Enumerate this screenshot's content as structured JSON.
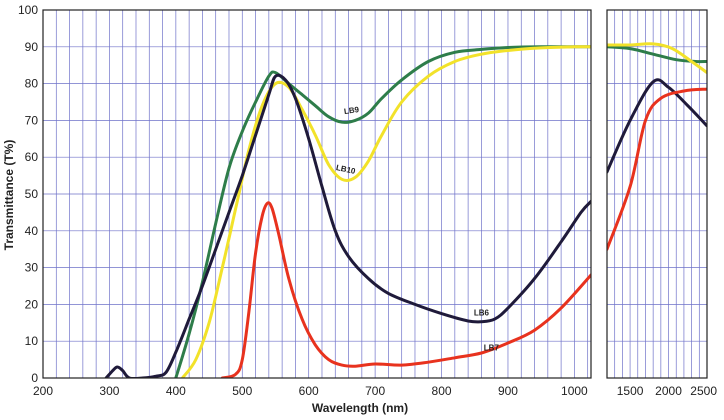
{
  "chart_data": {
    "type": "line",
    "xlabel": "Wavelength (nm)",
    "ylabel": "Transmittance (T%)",
    "ylim": [
      0,
      100
    ],
    "yticks": [
      0,
      10,
      20,
      30,
      40,
      50,
      60,
      70,
      80,
      90,
      100
    ],
    "grid": true,
    "panels": [
      {
        "xlim": [
          200,
          1025
        ],
        "xticks": [
          200,
          300,
          400,
          500,
          600,
          700,
          800,
          900,
          1000
        ]
      },
      {
        "xlim": [
          1200,
          2500
        ],
        "xticks": [
          1500,
          2000,
          2500
        ],
        "tick_labels": [
          "1500",
          "2000",
          "2500"
        ]
      }
    ],
    "series": [
      {
        "name": "LB9",
        "color": "#2e7d4a",
        "points": [
          [
            400,
            0
          ],
          [
            420,
            12
          ],
          [
            440,
            26
          ],
          [
            460,
            42
          ],
          [
            480,
            57
          ],
          [
            500,
            67
          ],
          [
            520,
            75
          ],
          [
            540,
            82
          ],
          [
            550,
            83
          ],
          [
            570,
            80
          ],
          [
            590,
            77
          ],
          [
            610,
            74
          ],
          [
            630,
            71
          ],
          [
            650,
            69.5
          ],
          [
            670,
            70
          ],
          [
            690,
            72
          ],
          [
            710,
            76
          ],
          [
            740,
            81
          ],
          [
            780,
            86
          ],
          [
            820,
            88.5
          ],
          [
            860,
            89.3
          ],
          [
            900,
            89.8
          ],
          [
            950,
            90
          ],
          [
            1000,
            90
          ],
          [
            1025,
            90
          ]
        ],
        "points_nir": [
          [
            1200,
            90
          ],
          [
            1500,
            89.5
          ],
          [
            1800,
            88
          ],
          [
            2100,
            86.5
          ],
          [
            2350,
            86
          ],
          [
            2500,
            86
          ]
        ]
      },
      {
        "name": "LB10",
        "color": "#f2e22a",
        "points": [
          [
            410,
            0
          ],
          [
            430,
            5
          ],
          [
            450,
            15
          ],
          [
            470,
            30
          ],
          [
            490,
            46
          ],
          [
            510,
            62
          ],
          [
            530,
            74
          ],
          [
            550,
            80
          ],
          [
            570,
            79
          ],
          [
            590,
            73
          ],
          [
            610,
            66
          ],
          [
            630,
            58
          ],
          [
            650,
            54
          ],
          [
            670,
            54.5
          ],
          [
            690,
            59
          ],
          [
            710,
            66
          ],
          [
            740,
            75
          ],
          [
            780,
            82
          ],
          [
            820,
            86
          ],
          [
            860,
            88
          ],
          [
            900,
            89
          ],
          [
            950,
            89.7
          ],
          [
            1000,
            90
          ],
          [
            1025,
            90
          ]
        ],
        "points_nir": [
          [
            1200,
            90.5
          ],
          [
            1500,
            90.5
          ],
          [
            1800,
            90.8
          ],
          [
            2050,
            89.5
          ],
          [
            2300,
            86
          ],
          [
            2500,
            83
          ]
        ]
      },
      {
        "name": "LB6",
        "color": "#1f1a3a",
        "points": [
          [
            295,
            0
          ],
          [
            305,
            2
          ],
          [
            312,
            3
          ],
          [
            320,
            2
          ],
          [
            330,
            0
          ],
          [
            350,
            0
          ],
          [
            370,
            0.5
          ],
          [
            385,
            1.5
          ],
          [
            400,
            7
          ],
          [
            420,
            16
          ],
          [
            440,
            25
          ],
          [
            460,
            35
          ],
          [
            480,
            45
          ],
          [
            500,
            55
          ],
          [
            520,
            66
          ],
          [
            540,
            77
          ],
          [
            550,
            82
          ],
          [
            565,
            81
          ],
          [
            580,
            76
          ],
          [
            600,
            65
          ],
          [
            620,
            52
          ],
          [
            640,
            40
          ],
          [
            660,
            33
          ],
          [
            690,
            27
          ],
          [
            720,
            23
          ],
          [
            760,
            20
          ],
          [
            800,
            17.5
          ],
          [
            840,
            15.5
          ],
          [
            860,
            15.3
          ],
          [
            880,
            16
          ],
          [
            900,
            19
          ],
          [
            940,
            27
          ],
          [
            980,
            37
          ],
          [
            1010,
            45
          ],
          [
            1025,
            48
          ]
        ],
        "points_nir": [
          [
            1200,
            56
          ],
          [
            1500,
            70
          ],
          [
            1800,
            80.5
          ],
          [
            2000,
            79
          ],
          [
            2250,
            74
          ],
          [
            2500,
            68.5
          ]
        ]
      },
      {
        "name": "LB7",
        "color": "#e8321e",
        "points": [
          [
            470,
            0
          ],
          [
            490,
            1
          ],
          [
            500,
            5
          ],
          [
            510,
            18
          ],
          [
            520,
            34
          ],
          [
            530,
            44
          ],
          [
            538,
            47.5
          ],
          [
            545,
            46
          ],
          [
            555,
            39
          ],
          [
            570,
            27
          ],
          [
            590,
            16
          ],
          [
            610,
            9
          ],
          [
            630,
            5
          ],
          [
            650,
            3.5
          ],
          [
            670,
            3.2
          ],
          [
            700,
            3.8
          ],
          [
            740,
            3.5
          ],
          [
            780,
            4.3
          ],
          [
            820,
            5.5
          ],
          [
            860,
            6.8
          ],
          [
            900,
            9.5
          ],
          [
            940,
            13
          ],
          [
            980,
            19
          ],
          [
            1025,
            28
          ]
        ],
        "points_nir": [
          [
            1200,
            35
          ],
          [
            1500,
            52
          ],
          [
            1700,
            70
          ],
          [
            1900,
            76
          ],
          [
            2200,
            78
          ],
          [
            2500,
            78.5
          ]
        ]
      }
    ]
  }
}
